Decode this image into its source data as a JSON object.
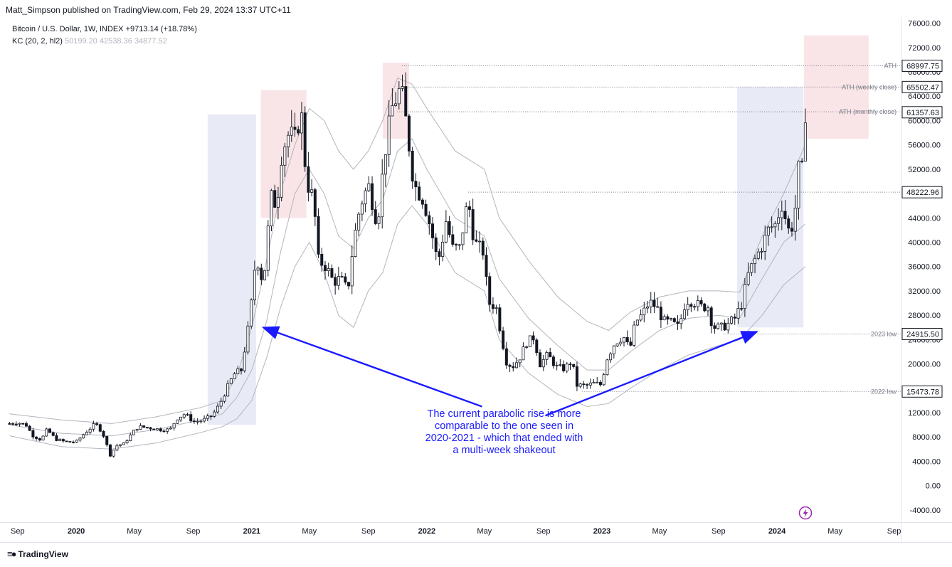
{
  "header": {
    "publisher": "Matt_Simpson published on TradingView.com, Feb 29, 2024 13:37 UTC+11",
    "symbol": "Bitcoin / U.S. Dollar, 1W, INDEX",
    "change": "+9713.14 (+18.78%)",
    "indicator_name": "KC (20, 2, hl2)",
    "indicator_values": [
      "50199.20",
      "42538.36",
      "34877.52"
    ]
  },
  "footer": {
    "brand": "TradingView"
  },
  "annotation": {
    "text": "The current parabolic rise is more comparable to the one seen in 2020-2021 - which that ended with a multi-week shakeout"
  },
  "colors": {
    "up": "#ffffff",
    "down": "#131722",
    "band": "#b2b5be",
    "box_blue": "#e4e7f5",
    "box_red": "#f8e1e3",
    "arrow": "#1a1aff",
    "level_line": "#787b86",
    "lightning": "#9c27b0"
  },
  "icons": {
    "lightning": "lightning-icon"
  },
  "chart_data": {
    "type": "candlestick",
    "timeframe": "1W",
    "ylim": [
      -6000,
      77000
    ],
    "x_range": [
      "2019-08-10",
      "2024-09-15"
    ],
    "y_ticks": [
      "76000.00",
      "72000.00",
      "68000.00",
      "64000.00",
      "60000.00",
      "56000.00",
      "52000.00",
      "48000.00",
      "44000.00",
      "40000.00",
      "36000.00",
      "32000.00",
      "28000.00",
      "24000.00",
      "20000.00",
      "16000.00",
      "12000.00",
      "8000.00",
      "4000.00",
      "0.00",
      "-4000.00"
    ],
    "x_ticks": [
      {
        "label": "Sep",
        "date": "2019-09-01",
        "bold": false
      },
      {
        "label": "2020",
        "date": "2020-01-01",
        "bold": true
      },
      {
        "label": "May",
        "date": "2020-05-01",
        "bold": false
      },
      {
        "label": "Sep",
        "date": "2020-09-01",
        "bold": false
      },
      {
        "label": "2021",
        "date": "2021-01-01",
        "bold": true
      },
      {
        "label": "May",
        "date": "2021-05-01",
        "bold": false
      },
      {
        "label": "Sep",
        "date": "2021-09-01",
        "bold": false
      },
      {
        "label": "2022",
        "date": "2022-01-01",
        "bold": true
      },
      {
        "label": "May",
        "date": "2022-05-01",
        "bold": false
      },
      {
        "label": "Sep",
        "date": "2022-09-01",
        "bold": false
      },
      {
        "label": "2023",
        "date": "2023-01-01",
        "bold": true
      },
      {
        "label": "May",
        "date": "2023-05-01",
        "bold": false
      },
      {
        "label": "Sep",
        "date": "2023-09-01",
        "bold": false
      },
      {
        "label": "2024",
        "date": "2024-01-01",
        "bold": true
      },
      {
        "label": "May",
        "date": "2024-05-01",
        "bold": false
      },
      {
        "label": "Sep",
        "date": "2024-09-01",
        "bold": false
      }
    ],
    "series": {
      "close": [
        [
          "2019-08-15",
          10200
        ],
        [
          "2019-09-01",
          10400
        ],
        [
          "2019-09-20",
          9900
        ],
        [
          "2019-10-01",
          8300
        ],
        [
          "2019-10-20",
          7500
        ],
        [
          "2019-11-01",
          9200
        ],
        [
          "2019-11-20",
          7600
        ],
        [
          "2019-12-10",
          7200
        ],
        [
          "2020-01-01",
          7200
        ],
        [
          "2020-01-20",
          8700
        ],
        [
          "2020-02-10",
          10200
        ],
        [
          "2020-02-25",
          8700
        ],
        [
          "2020-03-12",
          5000
        ],
        [
          "2020-03-25",
          6600
        ],
        [
          "2020-04-10",
          6900
        ],
        [
          "2020-04-28",
          8800
        ],
        [
          "2020-05-10",
          9700
        ],
        [
          "2020-06-01",
          9500
        ],
        [
          "2020-06-25",
          9200
        ],
        [
          "2020-07-15",
          9200
        ],
        [
          "2020-07-28",
          11000
        ],
        [
          "2020-08-15",
          11800
        ],
        [
          "2020-09-01",
          10500
        ],
        [
          "2020-09-20",
          10700
        ],
        [
          "2020-10-10",
          11500
        ],
        [
          "2020-10-25",
          13200
        ],
        [
          "2020-11-10",
          16000
        ],
        [
          "2020-11-25",
          18300
        ],
        [
          "2020-12-10",
          19000
        ],
        [
          "2020-12-28",
          27500
        ],
        [
          "2021-01-10",
          38000
        ],
        [
          "2021-01-25",
          33000
        ],
        [
          "2021-02-10",
          47500
        ],
        [
          "2021-02-22",
          46000
        ],
        [
          "2021-03-05",
          55000
        ],
        [
          "2021-03-20",
          58000
        ],
        [
          "2021-04-01",
          57000
        ],
        [
          "2021-04-14",
          61500
        ],
        [
          "2021-04-25",
          50000
        ],
        [
          "2021-05-10",
          47000
        ],
        [
          "2021-05-20",
          37000
        ],
        [
          "2021-06-05",
          36000
        ],
        [
          "2021-06-20",
          33500
        ],
        [
          "2021-07-05",
          34000
        ],
        [
          "2021-07-20",
          32000
        ],
        [
          "2021-08-01",
          40000
        ],
        [
          "2021-08-15",
          46000
        ],
        [
          "2021-09-01",
          49500
        ],
        [
          "2021-09-20",
          43000
        ],
        [
          "2021-10-05",
          54500
        ],
        [
          "2021-10-20",
          62000
        ],
        [
          "2021-11-08",
          65500
        ],
        [
          "2021-11-20",
          59000
        ],
        [
          "2021-12-05",
          49500
        ],
        [
          "2021-12-25",
          47000
        ],
        [
          "2022-01-10",
          42000
        ],
        [
          "2022-01-24",
          36500
        ],
        [
          "2022-02-10",
          43500
        ],
        [
          "2022-02-24",
          39000
        ],
        [
          "2022-03-10",
          39000
        ],
        [
          "2022-03-28",
          47000
        ],
        [
          "2022-04-10",
          40000
        ],
        [
          "2022-04-28",
          38500
        ],
        [
          "2022-05-10",
          30000
        ],
        [
          "2022-05-25",
          29500
        ],
        [
          "2022-06-15",
          20500
        ],
        [
          "2022-06-28",
          19500
        ],
        [
          "2022-07-12",
          20800
        ],
        [
          "2022-07-28",
          23500
        ],
        [
          "2022-08-12",
          24400
        ],
        [
          "2022-08-25",
          20000
        ],
        [
          "2022-09-10",
          21500
        ],
        [
          "2022-09-28",
          19500
        ],
        [
          "2022-10-15",
          19200
        ],
        [
          "2022-10-30",
          20500
        ],
        [
          "2022-11-10",
          16500
        ],
        [
          "2022-11-28",
          16400
        ],
        [
          "2022-12-15",
          16800
        ],
        [
          "2022-12-30",
          16600
        ],
        [
          "2023-01-12",
          21000
        ],
        [
          "2023-01-28",
          23500
        ],
        [
          "2023-02-15",
          24500
        ],
        [
          "2023-02-28",
          22300
        ],
        [
          "2023-03-12",
          26900
        ],
        [
          "2023-03-25",
          28000
        ],
        [
          "2023-04-10",
          30200
        ],
        [
          "2023-04-25",
          29300
        ],
        [
          "2023-05-10",
          27000
        ],
        [
          "2023-05-25",
          26800
        ],
        [
          "2023-06-10",
          26000
        ],
        [
          "2023-06-25",
          30500
        ],
        [
          "2023-07-10",
          30300
        ],
        [
          "2023-07-25",
          29400
        ],
        [
          "2023-08-10",
          29400
        ],
        [
          "2023-08-20",
          26100
        ],
        [
          "2023-09-05",
          25900
        ],
        [
          "2023-09-20",
          26500
        ],
        [
          "2023-10-05",
          27500
        ],
        [
          "2023-10-20",
          30000
        ],
        [
          "2023-11-01",
          34500
        ],
        [
          "2023-11-15",
          37000
        ],
        [
          "2023-12-01",
          39500
        ],
        [
          "2023-12-15",
          42200
        ],
        [
          "2023-12-30",
          43000
        ],
        [
          "2024-01-10",
          46500
        ],
        [
          "2024-01-25",
          42000
        ],
        [
          "2024-02-05",
          43000
        ],
        [
          "2024-02-15",
          52000
        ],
        [
          "2024-02-24",
          51800
        ],
        [
          "2024-02-29",
          61400
        ]
      ],
      "kc_upper": [
        [
          "2019-08-15",
          11800
        ],
        [
          "2019-12-01",
          10800
        ],
        [
          "2020-03-15",
          10200
        ],
        [
          "2020-06-15",
          11300
        ],
        [
          "2020-09-15",
          12800
        ],
        [
          "2020-11-01",
          14000
        ],
        [
          "2020-12-01",
          18000
        ],
        [
          "2021-01-01",
          26000
        ],
        [
          "2021-02-01",
          37000
        ],
        [
          "2021-03-01",
          48000
        ],
        [
          "2021-04-01",
          56000
        ],
        [
          "2021-05-01",
          62000
        ],
        [
          "2021-06-01",
          60000
        ],
        [
          "2021-07-01",
          55000
        ],
        [
          "2021-08-01",
          52000
        ],
        [
          "2021-09-01",
          55000
        ],
        [
          "2021-10-01",
          60000
        ],
        [
          "2021-11-01",
          67000
        ],
        [
          "2021-12-01",
          66000
        ],
        [
          "2022-01-01",
          62000
        ],
        [
          "2022-03-01",
          55000
        ],
        [
          "2022-05-01",
          52000
        ],
        [
          "2022-06-01",
          44000
        ],
        [
          "2022-08-01",
          37000
        ],
        [
          "2022-10-01",
          31000
        ],
        [
          "2022-12-01",
          27000
        ],
        [
          "2023-01-15",
          25500
        ],
        [
          "2023-03-01",
          28500
        ],
        [
          "2023-05-01",
          31000
        ],
        [
          "2023-07-01",
          32000
        ],
        [
          "2023-09-01",
          32000
        ],
        [
          "2023-10-15",
          31800
        ],
        [
          "2023-12-01",
          41000
        ],
        [
          "2024-01-15",
          48000
        ],
        [
          "2024-02-29",
          56000
        ]
      ],
      "kc_middle": [
        [
          "2019-08-15",
          10000
        ],
        [
          "2019-12-01",
          8600
        ],
        [
          "2020-03-15",
          8200
        ],
        [
          "2020-06-15",
          9200
        ],
        [
          "2020-09-15",
          10800
        ],
        [
          "2020-11-01",
          11800
        ],
        [
          "2020-12-01",
          14500
        ],
        [
          "2021-01-01",
          19000
        ],
        [
          "2021-02-01",
          27000
        ],
        [
          "2021-03-01",
          38000
        ],
        [
          "2021-04-01",
          48000
        ],
        [
          "2021-05-01",
          52000
        ],
        [
          "2021-06-01",
          48000
        ],
        [
          "2021-07-01",
          41000
        ],
        [
          "2021-08-01",
          39000
        ],
        [
          "2021-09-01",
          44000
        ],
        [
          "2021-10-01",
          47000
        ],
        [
          "2021-11-01",
          55000
        ],
        [
          "2021-12-01",
          57000
        ],
        [
          "2022-01-01",
          52000
        ],
        [
          "2022-03-01",
          44000
        ],
        [
          "2022-05-01",
          41000
        ],
        [
          "2022-06-01",
          34000
        ],
        [
          "2022-08-01",
          27500
        ],
        [
          "2022-10-01",
          23000
        ],
        [
          "2022-12-01",
          19000
        ],
        [
          "2023-01-15",
          19000
        ],
        [
          "2023-03-01",
          22000
        ],
        [
          "2023-05-01",
          25500
        ],
        [
          "2023-07-01",
          27500
        ],
        [
          "2023-09-01",
          28000
        ],
        [
          "2023-10-15",
          27500
        ],
        [
          "2023-12-01",
          34000
        ],
        [
          "2024-01-15",
          40000
        ],
        [
          "2024-02-29",
          43000
        ]
      ],
      "kc_lower": [
        [
          "2019-08-15",
          8200
        ],
        [
          "2019-12-01",
          6400
        ],
        [
          "2020-03-15",
          6000
        ],
        [
          "2020-06-15",
          7000
        ],
        [
          "2020-09-15",
          8700
        ],
        [
          "2020-11-01",
          9700
        ],
        [
          "2020-12-01",
          11000
        ],
        [
          "2021-01-01",
          14000
        ],
        [
          "2021-02-01",
          21000
        ],
        [
          "2021-03-01",
          29000
        ],
        [
          "2021-04-01",
          36000
        ],
        [
          "2021-05-01",
          40000
        ],
        [
          "2021-06-01",
          35000
        ],
        [
          "2021-07-01",
          28000
        ],
        [
          "2021-08-01",
          26000
        ],
        [
          "2021-09-01",
          32000
        ],
        [
          "2021-10-01",
          35000
        ],
        [
          "2021-11-01",
          43000
        ],
        [
          "2021-12-01",
          46000
        ],
        [
          "2022-01-01",
          43000
        ],
        [
          "2022-03-01",
          35000
        ],
        [
          "2022-05-01",
          32000
        ],
        [
          "2022-06-01",
          24000
        ],
        [
          "2022-08-01",
          18500
        ],
        [
          "2022-10-01",
          15000
        ],
        [
          "2022-12-01",
          13000
        ],
        [
          "2023-01-15",
          13500
        ],
        [
          "2023-03-01",
          16000
        ],
        [
          "2023-05-01",
          19000
        ],
        [
          "2023-07-01",
          21500
        ],
        [
          "2023-09-01",
          23000
        ],
        [
          "2023-10-15",
          24000
        ],
        [
          "2023-12-01",
          28000
        ],
        [
          "2024-01-15",
          33000
        ],
        [
          "2024-02-29",
          36000
        ]
      ]
    },
    "levels": [
      {
        "label": "ATH",
        "value": 68997.75,
        "value_text": "68997.75",
        "from": "2021-11-10"
      },
      {
        "label": "ATH (weekly close)",
        "value": 65502.47,
        "value_text": "65502.47",
        "from": "2021-11-08"
      },
      {
        "label": "ATH (monthly close)",
        "value": 61438.59,
        "value_text": "61438.59",
        "from": "2021-10-31"
      },
      {
        "label": "",
        "value": 61357.63,
        "value_text": "61357.63",
        "from": null
      },
      {
        "label": "",
        "value": 48222.96,
        "value_text": "48222.96",
        "from": "2022-03-28"
      },
      {
        "label": "2023 low",
        "value": 24915.5,
        "value_text": "24915.50",
        "from": "2023-09-11"
      },
      {
        "label": "2022 low",
        "value": 15473.78,
        "value_text": "15473.78",
        "from": "2022-11-21"
      }
    ],
    "boxes": [
      {
        "kind": "blue",
        "x0": "2020-10-01",
        "x1": "2021-01-10",
        "y0": 10000,
        "y1": 61000
      },
      {
        "kind": "red",
        "x0": "2021-01-20",
        "x1": "2021-04-25",
        "y0": 44000,
        "y1": 65000
      },
      {
        "kind": "red",
        "x0": "2021-10-01",
        "x1": "2021-11-25",
        "y0": 57000,
        "y1": 69500
      },
      {
        "kind": "blue",
        "x0": "2023-10-10",
        "x1": "2024-02-25",
        "y0": 26000,
        "y1": 65500
      },
      {
        "kind": "red",
        "x0": "2024-02-26",
        "x1": "2024-07-10",
        "y0": 57000,
        "y1": 74000
      }
    ],
    "arrows": [
      {
        "from": [
          "2022-04-26",
          13000
        ],
        "to": [
          "2021-01-25",
          26000
        ]
      },
      {
        "from": [
          "2022-09-05",
          11500
        ],
        "to": [
          "2023-11-20",
          25300
        ]
      }
    ]
  }
}
